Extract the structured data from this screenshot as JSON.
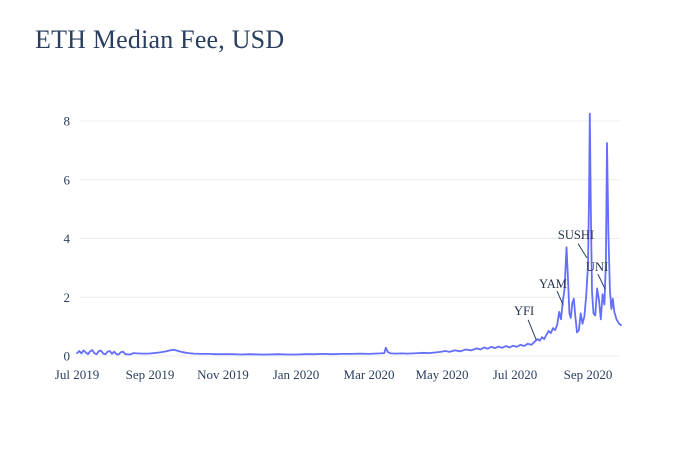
{
  "title": "ETH Median Fee, USD",
  "chart_data": {
    "type": "line",
    "title": "ETH Median Fee, USD",
    "xlabel": "",
    "ylabel": "",
    "x_unit": "months since Jul 2019",
    "ylim": [
      0,
      8.5
    ],
    "grid": true,
    "legend": "none",
    "line_color": "#636efa",
    "grid_color": "#ececec",
    "text_color": "#2a3f5f",
    "x_ticks": [
      {
        "label": "Jul 2019",
        "m": 0
      },
      {
        "label": "Sep 2019",
        "m": 2
      },
      {
        "label": "Nov 2019",
        "m": 4
      },
      {
        "label": "Jan 2020",
        "m": 6
      },
      {
        "label": "Mar 2020",
        "m": 8
      },
      {
        "label": "May 2020",
        "m": 10
      },
      {
        "label": "Jul 2020",
        "m": 12
      },
      {
        "label": "Sep 2020",
        "m": 14
      }
    ],
    "y_ticks": [
      0,
      2,
      4,
      6,
      8
    ],
    "annotations": [
      {
        "label": "YFI",
        "text_m": 12.25,
        "text_v": 1.53,
        "line": [
          [
            12.36,
            1.23
          ],
          [
            12.58,
            0.55
          ]
        ]
      },
      {
        "label": "YAM",
        "text_m": 13.04,
        "text_v": 2.45,
        "line": [
          [
            13.15,
            2.21
          ],
          [
            13.32,
            1.74
          ]
        ]
      },
      {
        "label": "SUSHI",
        "text_m": 13.67,
        "text_v": 4.12,
        "line": [
          [
            13.73,
            3.82
          ],
          [
            13.97,
            3.34
          ]
        ]
      },
      {
        "label": "UNI",
        "text_m": 14.25,
        "text_v": 3.03,
        "line": [
          [
            14.27,
            2.79
          ],
          [
            14.47,
            2.28
          ]
        ]
      }
    ],
    "points": [
      [
        0.0,
        0.1
      ],
      [
        0.06,
        0.17
      ],
      [
        0.12,
        0.09
      ],
      [
        0.18,
        0.19
      ],
      [
        0.24,
        0.12
      ],
      [
        0.3,
        0.06
      ],
      [
        0.36,
        0.16
      ],
      [
        0.42,
        0.2
      ],
      [
        0.48,
        0.09
      ],
      [
        0.54,
        0.06
      ],
      [
        0.6,
        0.17
      ],
      [
        0.66,
        0.18
      ],
      [
        0.72,
        0.08
      ],
      [
        0.78,
        0.06
      ],
      [
        0.84,
        0.15
      ],
      [
        0.9,
        0.17
      ],
      [
        0.96,
        0.07
      ],
      [
        1.02,
        0.15
      ],
      [
        1.08,
        0.06
      ],
      [
        1.14,
        0.05
      ],
      [
        1.2,
        0.13
      ],
      [
        1.26,
        0.15
      ],
      [
        1.32,
        0.06
      ],
      [
        1.45,
        0.05
      ],
      [
        1.55,
        0.1
      ],
      [
        1.65,
        0.09
      ],
      [
        1.8,
        0.08
      ],
      [
        1.95,
        0.08
      ],
      [
        2.1,
        0.1
      ],
      [
        2.25,
        0.12
      ],
      [
        2.4,
        0.15
      ],
      [
        2.55,
        0.19
      ],
      [
        2.65,
        0.21
      ],
      [
        2.75,
        0.18
      ],
      [
        2.9,
        0.13
      ],
      [
        3.05,
        0.1
      ],
      [
        3.2,
        0.08
      ],
      [
        3.4,
        0.07
      ],
      [
        3.6,
        0.07
      ],
      [
        3.8,
        0.06
      ],
      [
        4.0,
        0.06
      ],
      [
        4.25,
        0.06
      ],
      [
        4.5,
        0.05
      ],
      [
        4.75,
        0.06
      ],
      [
        5.0,
        0.05
      ],
      [
        5.25,
        0.05
      ],
      [
        5.5,
        0.06
      ],
      [
        5.75,
        0.05
      ],
      [
        6.0,
        0.05
      ],
      [
        6.25,
        0.06
      ],
      [
        6.5,
        0.06
      ],
      [
        6.75,
        0.07
      ],
      [
        7.0,
        0.06
      ],
      [
        7.25,
        0.07
      ],
      [
        7.5,
        0.07
      ],
      [
        7.75,
        0.08
      ],
      [
        8.0,
        0.07
      ],
      [
        8.15,
        0.08
      ],
      [
        8.3,
        0.09
      ],
      [
        8.42,
        0.1
      ],
      [
        8.46,
        0.28
      ],
      [
        8.52,
        0.13
      ],
      [
        8.6,
        0.09
      ],
      [
        8.75,
        0.08
      ],
      [
        8.9,
        0.09
      ],
      [
        9.05,
        0.08
      ],
      [
        9.2,
        0.09
      ],
      [
        9.35,
        0.1
      ],
      [
        9.5,
        0.11
      ],
      [
        9.65,
        0.1
      ],
      [
        9.8,
        0.12
      ],
      [
        9.95,
        0.14
      ],
      [
        10.1,
        0.17
      ],
      [
        10.2,
        0.14
      ],
      [
        10.35,
        0.19
      ],
      [
        10.5,
        0.16
      ],
      [
        10.65,
        0.22
      ],
      [
        10.8,
        0.19
      ],
      [
        10.95,
        0.26
      ],
      [
        11.05,
        0.22
      ],
      [
        11.15,
        0.29
      ],
      [
        11.25,
        0.25
      ],
      [
        11.35,
        0.31
      ],
      [
        11.45,
        0.27
      ],
      [
        11.55,
        0.32
      ],
      [
        11.65,
        0.28
      ],
      [
        11.75,
        0.34
      ],
      [
        11.85,
        0.29
      ],
      [
        11.95,
        0.35
      ],
      [
        12.05,
        0.31
      ],
      [
        12.15,
        0.38
      ],
      [
        12.25,
        0.34
      ],
      [
        12.35,
        0.42
      ],
      [
        12.45,
        0.38
      ],
      [
        12.55,
        0.5
      ],
      [
        12.62,
        0.58
      ],
      [
        12.68,
        0.52
      ],
      [
        12.74,
        0.64
      ],
      [
        12.8,
        0.58
      ],
      [
        12.86,
        0.72
      ],
      [
        12.92,
        0.85
      ],
      [
        12.98,
        0.78
      ],
      [
        13.04,
        0.95
      ],
      [
        13.1,
        0.88
      ],
      [
        13.16,
        1.08
      ],
      [
        13.21,
        1.5
      ],
      [
        13.26,
        1.25
      ],
      [
        13.31,
        1.85
      ],
      [
        13.36,
        2.3
      ],
      [
        13.41,
        3.7
      ],
      [
        13.45,
        2.7
      ],
      [
        13.49,
        1.45
      ],
      [
        13.53,
        1.3
      ],
      [
        13.57,
        1.8
      ],
      [
        13.61,
        1.95
      ],
      [
        13.65,
        1.4
      ],
      [
        13.7,
        0.8
      ],
      [
        13.75,
        0.88
      ],
      [
        13.8,
        1.45
      ],
      [
        13.85,
        1.1
      ],
      [
        13.9,
        1.35
      ],
      [
        13.95,
        2.05
      ],
      [
        14.0,
        3.1
      ],
      [
        14.03,
        5.6
      ],
      [
        14.05,
        8.25
      ],
      [
        14.08,
        4.8
      ],
      [
        14.11,
        2.2
      ],
      [
        14.15,
        1.45
      ],
      [
        14.2,
        1.38
      ],
      [
        14.25,
        2.3
      ],
      [
        14.3,
        1.9
      ],
      [
        14.35,
        1.25
      ],
      [
        14.4,
        2.1
      ],
      [
        14.45,
        1.75
      ],
      [
        14.49,
        3.2
      ],
      [
        14.52,
        7.25
      ],
      [
        14.56,
        4.2
      ],
      [
        14.6,
        2.25
      ],
      [
        14.64,
        1.6
      ],
      [
        14.68,
        1.95
      ],
      [
        14.72,
        1.5
      ],
      [
        14.78,
        1.25
      ],
      [
        14.84,
        1.12
      ],
      [
        14.9,
        1.05
      ]
    ]
  }
}
